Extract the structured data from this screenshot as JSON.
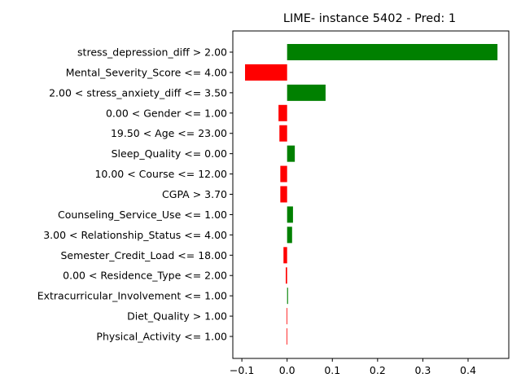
{
  "chart_data": {
    "type": "bar",
    "orientation": "horizontal",
    "title": "LIME- instance 5402 - Pred: 1",
    "xlabel": "",
    "ylabel": "",
    "xlim": [
      -0.12,
      0.49
    ],
    "xticks": [
      -0.1,
      0.0,
      0.1,
      0.2,
      0.3,
      0.4
    ],
    "xtick_labels": [
      "−0.1",
      "0.0",
      "0.1",
      "0.2",
      "0.3",
      "0.4"
    ],
    "grid": false,
    "positive_color": "#008000",
    "negative_color": "#ff0000",
    "categories": [
      "stress_depression_diff > 2.00",
      "Mental_Severity_Score <= 4.00",
      "2.00 < stress_anxiety_diff <= 3.50",
      "0.00 < Gender <= 1.00",
      "19.50 < Age <= 23.00",
      "Sleep_Quality <= 0.00",
      "10.00 < Course <= 12.00",
      "CGPA > 3.70",
      "Counseling_Service_Use <= 1.00",
      "3.00 < Relationship_Status <= 4.00",
      "Semester_Credit_Load <= 18.00",
      "0.00 < Residence_Type <= 2.00",
      "Extracurricular_Involvement <= 1.00",
      "Diet_Quality > 1.00",
      "Physical_Activity <= 1.00"
    ],
    "values": [
      0.465,
      -0.093,
      0.085,
      -0.019,
      -0.017,
      0.017,
      -0.015,
      -0.015,
      0.013,
      0.011,
      -0.008,
      -0.003,
      0.002,
      -0.001,
      -0.001
    ]
  }
}
